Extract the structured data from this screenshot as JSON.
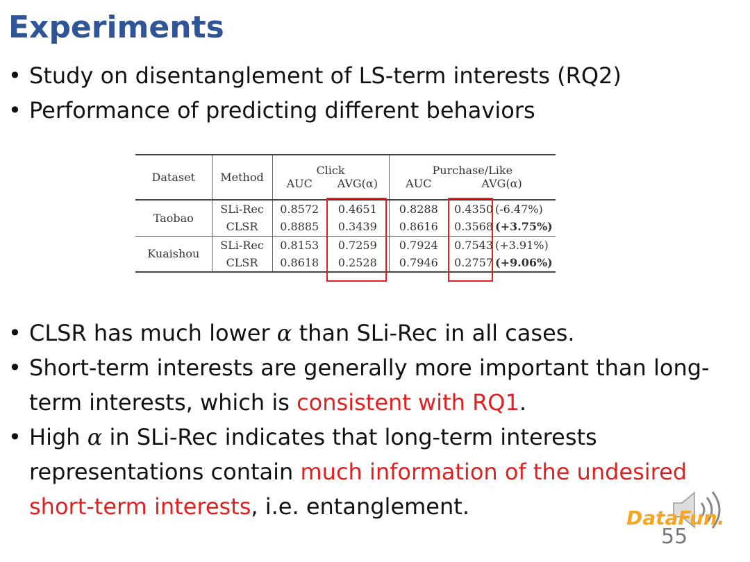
{
  "title": "Experiments",
  "top_bullets": [
    "Study on disentanglement of LS-term interests (RQ2)",
    "Performance of predicting different behaviors"
  ],
  "table": {
    "headers": [
      "Dataset",
      "Method",
      "Click",
      "Purchase/Like"
    ],
    "subheaders": [
      "AUC",
      "AVG(α)",
      "AUC",
      "AVG(α)"
    ],
    "rows": [
      [
        "Taobao",
        "SLi-Rec",
        "0.8572",
        "0.4651",
        "0.8288",
        "0.4350",
        "(-6.47%)"
      ],
      [
        "Taobao",
        "CLSR",
        "0.8885",
        "0.3439",
        "0.8616",
        "0.3568",
        "(+3.75%)"
      ],
      [
        "Kuaishou",
        "SLi-Rec",
        "0.8153",
        "0.7259",
        "0.7924",
        "0.7543",
        "(+3.91%)"
      ],
      [
        "Kuaishou",
        "CLSR",
        "0.8618",
        "0.2528",
        "0.7946",
        "0.2757",
        "(+9.06%)"
      ]
    ],
    "bold_change_rows": [
      1,
      3
    ]
  },
  "bullets": [
    {
      "segments": [
        {
          "text": "CLSR has much lower "
        },
        {
          "text": "α",
          "style": "math"
        },
        {
          "text": " than SLi-Rec in all cases."
        }
      ]
    },
    {
      "segments": [
        {
          "text": "Short-term interests are generally more important than long-term interests, which is "
        },
        {
          "text": "consistent with RQ1",
          "style": "red"
        },
        {
          "text": "."
        }
      ]
    },
    {
      "segments": [
        {
          "text": "High "
        },
        {
          "text": "α",
          "style": "math"
        },
        {
          "text": " in SLi-Rec indicates that long-term interests representations contain "
        },
        {
          "text": "much information of the undesired short-term interests",
          "style": "red"
        },
        {
          "text": ", i.e. entanglement."
        }
      ]
    }
  ],
  "logo": "DataFun.",
  "page_number": "55"
}
